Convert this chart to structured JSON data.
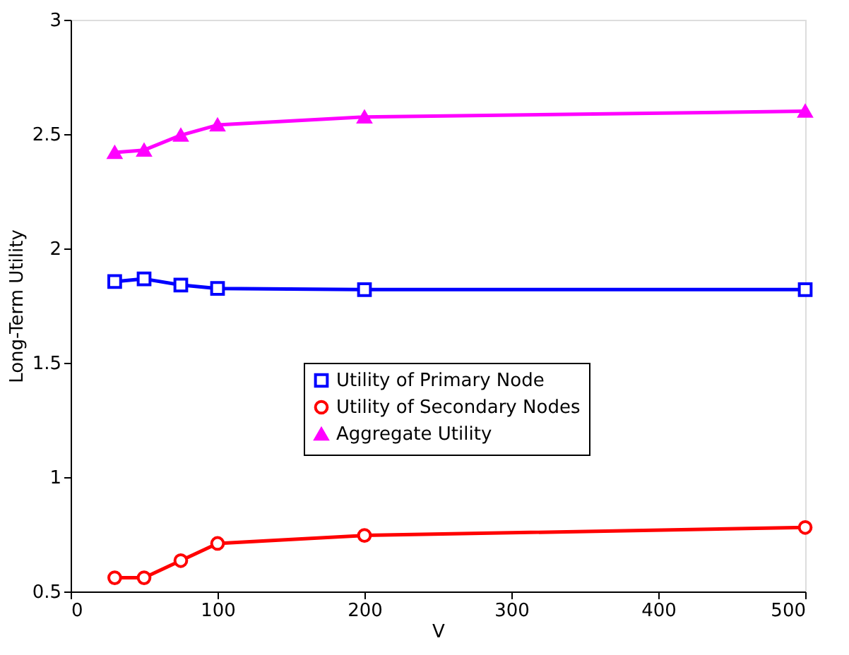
{
  "chart_data": {
    "type": "line",
    "xlabel": "V",
    "ylabel": "Long-Term Utility",
    "x": [
      30,
      50,
      75,
      100,
      200,
      500
    ],
    "series": [
      {
        "name": "Utility of Primary Node",
        "color": "#0000ff",
        "marker": "square",
        "values": [
          1.855,
          1.867,
          1.84,
          1.825,
          1.82,
          1.82
        ]
      },
      {
        "name": "Utility of Secondary Nodes",
        "color": "#ff0000",
        "marker": "circle",
        "values": [
          0.56,
          0.56,
          0.635,
          0.71,
          0.745,
          0.78
        ]
      },
      {
        "name": "Aggregate Utility",
        "color": "#ff00ff",
        "marker": "triangle",
        "values": [
          2.42,
          2.43,
          2.495,
          2.54,
          2.575,
          2.6
        ]
      }
    ],
    "xlim": [
      0,
      500
    ],
    "xticks": [
      0,
      100,
      200,
      300,
      400,
      500
    ],
    "ylim": [
      0.5,
      3
    ],
    "yticks": [
      0.5,
      1,
      1.5,
      2,
      2.5,
      3
    ],
    "grid": false,
    "legend": "right",
    "line_style": "solid"
  }
}
